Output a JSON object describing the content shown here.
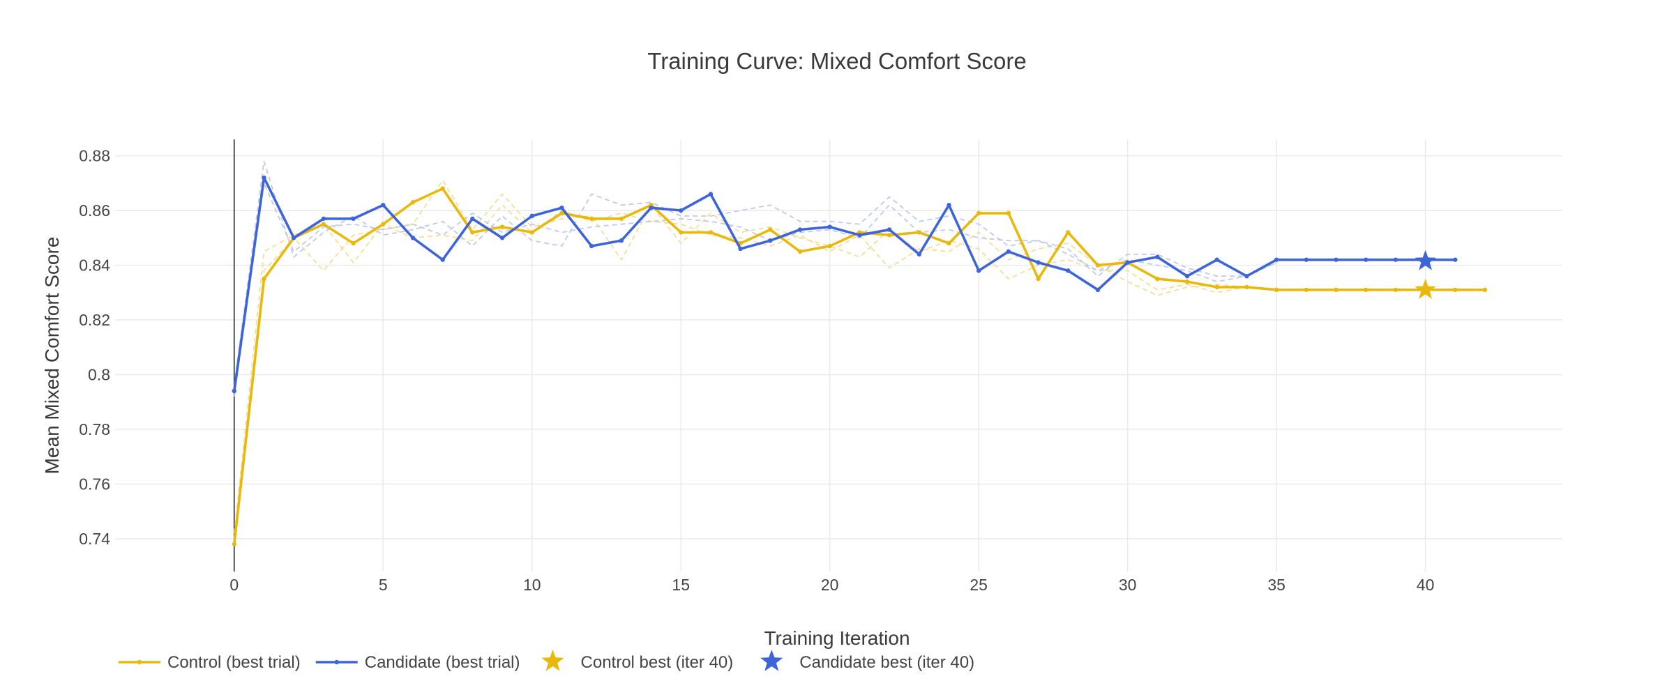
{
  "chart_data": {
    "type": "line",
    "title": "Training Curve: Mixed Comfort Score",
    "xlabel": "Training Iteration",
    "ylabel": "Mean Mixed Comfort Score",
    "xlim": [
      -4,
      44.6
    ],
    "ylim": [
      0.728,
      0.886
    ],
    "x_ticks": [
      0,
      5,
      10,
      15,
      20,
      25,
      30,
      35,
      40
    ],
    "x_tick_labels": [
      "0",
      "5",
      "10",
      "15",
      "20",
      "25",
      "30",
      "35",
      "40"
    ],
    "y_ticks": [
      0.74,
      0.76,
      0.78,
      0.8,
      0.82,
      0.84,
      0.86,
      0.88
    ],
    "y_tick_labels": [
      "0.74",
      "0.76",
      "0.78",
      "0.8",
      "0.82",
      "0.84",
      "0.86",
      "0.88"
    ],
    "grid": true,
    "legend_position": "bottom-left",
    "colors": {
      "control": "#e8b90c",
      "candidate": "#3d65d9",
      "control_faint": "#f2dc8f",
      "candidate_faint": "#b8c4ec",
      "grid": "#ebebeb",
      "zero_line": "#444444"
    },
    "series": [
      {
        "name": "Control (best trial)",
        "key": "control",
        "style": "solid-markers",
        "x": [
          0,
          1,
          2,
          3,
          4,
          5,
          6,
          7,
          8,
          9,
          10,
          11,
          12,
          13,
          14,
          15,
          16,
          17,
          18,
          19,
          20,
          21,
          22,
          23,
          24,
          25,
          26,
          27,
          28,
          29,
          30,
          31,
          32,
          33,
          34,
          35,
          36,
          37,
          38,
          39,
          40,
          41,
          42
        ],
        "y": [
          0.738,
          0.835,
          0.85,
          0.855,
          0.848,
          0.855,
          0.863,
          0.868,
          0.852,
          0.854,
          0.852,
          0.859,
          0.857,
          0.857,
          0.862,
          0.852,
          0.852,
          0.848,
          0.853,
          0.845,
          0.847,
          0.852,
          0.851,
          0.852,
          0.848,
          0.859,
          0.859,
          0.835,
          0.852,
          0.84,
          0.841,
          0.835,
          0.834,
          0.832,
          0.832,
          0.831,
          0.831,
          0.831,
          0.831,
          0.831,
          0.831,
          0.831,
          0.831
        ]
      },
      {
        "name": "Candidate (best trial)",
        "key": "candidate",
        "style": "solid-markers",
        "x": [
          0,
          1,
          2,
          3,
          4,
          5,
          6,
          7,
          8,
          9,
          10,
          11,
          12,
          13,
          14,
          15,
          16,
          17,
          18,
          19,
          20,
          21,
          22,
          23,
          24,
          25,
          26,
          27,
          28,
          29,
          30,
          31,
          32,
          33,
          34,
          35,
          36,
          37,
          38,
          39,
          40,
          41
        ],
        "y": [
          0.794,
          0.872,
          0.85,
          0.857,
          0.857,
          0.862,
          0.85,
          0.842,
          0.857,
          0.85,
          0.858,
          0.861,
          0.847,
          0.849,
          0.861,
          0.86,
          0.866,
          0.846,
          0.849,
          0.853,
          0.854,
          0.851,
          0.853,
          0.844,
          0.862,
          0.838,
          0.845,
          0.841,
          0.838,
          0.831,
          0.841,
          0.843,
          0.836,
          0.842,
          0.836,
          0.842,
          0.842,
          0.842,
          0.842,
          0.842,
          0.842,
          0.842
        ]
      },
      {
        "key": "control",
        "style": "dashed-faint",
        "x": [
          0,
          1,
          2,
          3,
          4,
          5,
          6,
          7,
          8,
          9,
          10,
          11,
          12,
          13,
          14,
          15,
          16,
          17,
          18,
          19,
          20,
          21,
          22,
          23,
          24,
          25,
          26,
          27,
          28,
          29,
          30,
          31,
          32,
          33,
          34,
          35
        ],
        "y": [
          0.74,
          0.838,
          0.85,
          0.838,
          0.851,
          0.853,
          0.855,
          0.871,
          0.853,
          0.866,
          0.854,
          0.857,
          0.858,
          0.842,
          0.862,
          0.848,
          0.859,
          0.852,
          0.854,
          0.85,
          0.847,
          0.843,
          0.853,
          0.845,
          0.849,
          0.846,
          0.835,
          0.84,
          0.842,
          0.838,
          0.838,
          0.831,
          0.833,
          0.83,
          0.832,
          0.831
        ]
      },
      {
        "key": "control",
        "style": "dashed-faint",
        "x": [
          0,
          1,
          2,
          3,
          4,
          5,
          6,
          7,
          8,
          9,
          10,
          11,
          12,
          13,
          14,
          15,
          16,
          17,
          18,
          19,
          20,
          21,
          22,
          23,
          24,
          25,
          26,
          27,
          28,
          29,
          30,
          31,
          32,
          33,
          34,
          35
        ],
        "y": [
          0.742,
          0.845,
          0.851,
          0.855,
          0.841,
          0.855,
          0.85,
          0.851,
          0.849,
          0.862,
          0.852,
          0.86,
          0.856,
          0.859,
          0.856,
          0.855,
          0.851,
          0.85,
          0.847,
          0.851,
          0.845,
          0.851,
          0.839,
          0.846,
          0.845,
          0.852,
          0.842,
          0.846,
          0.848,
          0.84,
          0.834,
          0.829,
          0.832,
          0.833,
          0.832,
          0.831
        ]
      },
      {
        "key": "candidate",
        "style": "dashed-faint",
        "x": [
          0,
          1,
          2,
          3,
          4,
          5,
          6,
          7,
          8,
          9,
          10,
          11,
          12,
          13,
          14,
          15,
          16,
          17,
          18,
          19,
          20,
          21,
          22,
          23,
          24,
          25,
          26,
          27,
          28,
          29,
          30,
          31,
          32,
          33,
          34,
          35
        ],
        "y": [
          0.796,
          0.878,
          0.843,
          0.852,
          0.858,
          0.851,
          0.853,
          0.856,
          0.847,
          0.858,
          0.849,
          0.847,
          0.866,
          0.862,
          0.863,
          0.858,
          0.858,
          0.86,
          0.862,
          0.856,
          0.856,
          0.855,
          0.865,
          0.856,
          0.858,
          0.855,
          0.847,
          0.849,
          0.846,
          0.836,
          0.844,
          0.844,
          0.839,
          0.836,
          0.836,
          0.841
        ]
      },
      {
        "key": "candidate",
        "style": "dashed-faint",
        "x": [
          0,
          1,
          2,
          3,
          4,
          5,
          6,
          7,
          8,
          9,
          10,
          11,
          12,
          13,
          14,
          15,
          16,
          17,
          18,
          19,
          20,
          21,
          22,
          23,
          24,
          25,
          26,
          27,
          28,
          29,
          30,
          31,
          32,
          33,
          34,
          35
        ],
        "y": [
          0.792,
          0.87,
          0.845,
          0.854,
          0.855,
          0.853,
          0.855,
          0.851,
          0.859,
          0.852,
          0.855,
          0.852,
          0.854,
          0.855,
          0.856,
          0.857,
          0.856,
          0.854,
          0.849,
          0.852,
          0.853,
          0.85,
          0.862,
          0.852,
          0.853,
          0.85,
          0.849,
          0.849,
          0.844,
          0.838,
          0.842,
          0.84,
          0.838,
          0.834,
          0.836,
          0.841
        ]
      }
    ],
    "best_points": [
      {
        "name": "Control best (iter 40)",
        "key": "control",
        "x": 40,
        "y": 0.831
      },
      {
        "name": "Candidate best (iter 40)",
        "key": "candidate",
        "x": 40,
        "y": 0.8415
      }
    ]
  }
}
